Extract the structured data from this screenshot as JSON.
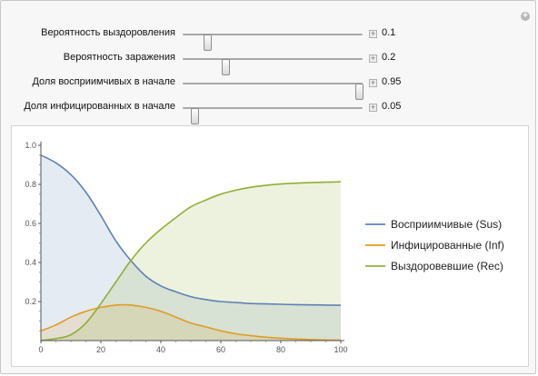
{
  "controls": [
    {
      "label": "Вероятность выздоровления",
      "value": "0.1",
      "fraction": 0.14
    },
    {
      "label": "Вероятность заражения",
      "value": "0.2",
      "fraction": 0.24
    },
    {
      "label": "Доля восприимчивых в начале",
      "value": "0.95",
      "fraction": 0.985
    },
    {
      "label": "Доля инфицированных в начале",
      "value": "0.05",
      "fraction": 0.07
    }
  ],
  "plus_glyph": "+",
  "add_glyph": "+",
  "chart_data": {
    "type": "area",
    "title": "",
    "xlabel": "",
    "ylabel": "",
    "xlim": [
      0,
      100
    ],
    "ylim": [
      0,
      1.0
    ],
    "x_ticks": [
      "0",
      "20",
      "40",
      "60",
      "80",
      "100"
    ],
    "y_ticks": [
      "0.2",
      "0.4",
      "0.6",
      "0.8",
      "1.0"
    ],
    "x_tick_values": [
      0,
      20,
      40,
      60,
      80,
      100
    ],
    "y_tick_values": [
      0.2,
      0.4,
      0.6,
      0.8,
      1.0
    ],
    "grid": false,
    "legend_position": "right",
    "x": [
      0,
      5,
      10,
      15,
      20,
      25,
      30,
      35,
      40,
      45,
      50,
      55,
      60,
      65,
      70,
      75,
      80,
      85,
      90,
      95,
      100
    ],
    "series": [
      {
        "name": "Восприимчивые (Sus)",
        "color": "#5e81b5",
        "fill": "#dfe4ef",
        "values": [
          0.95,
          0.91,
          0.85,
          0.76,
          0.64,
          0.51,
          0.41,
          0.33,
          0.28,
          0.25,
          0.225,
          0.21,
          0.2,
          0.195,
          0.19,
          0.188,
          0.186,
          0.184,
          0.183,
          0.182,
          0.181
        ]
      },
      {
        "name": "Инфицированные (Inf)",
        "color": "#e19c24",
        "fill": "#eee9d2",
        "values": [
          0.05,
          0.08,
          0.12,
          0.15,
          0.17,
          0.182,
          0.182,
          0.17,
          0.15,
          0.12,
          0.09,
          0.07,
          0.05,
          0.035,
          0.025,
          0.017,
          0.012,
          0.008,
          0.005,
          0.003,
          0.002
        ]
      },
      {
        "name": "Выздоровевшие (Rec)",
        "color": "#8fb032",
        "fill": "#e6edd2",
        "values": [
          0.0,
          0.01,
          0.03,
          0.09,
          0.19,
          0.3,
          0.41,
          0.5,
          0.57,
          0.63,
          0.685,
          0.72,
          0.75,
          0.77,
          0.785,
          0.795,
          0.802,
          0.806,
          0.809,
          0.811,
          0.813
        ]
      }
    ]
  }
}
